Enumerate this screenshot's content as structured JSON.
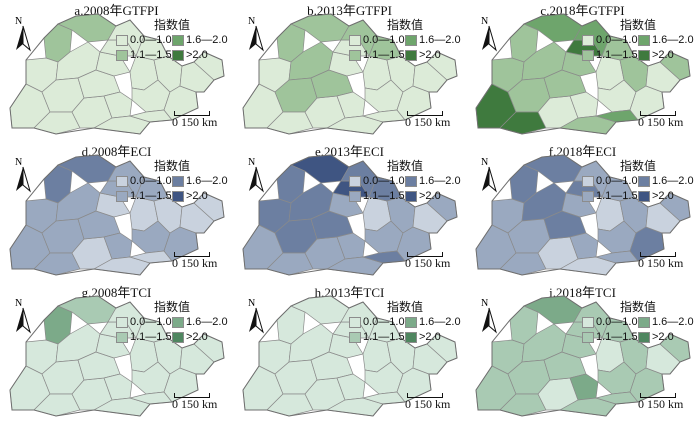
{
  "legend_title": "指数值",
  "legend_labels": [
    "0.0—1.0",
    "1.6—2.0",
    "1.1—1.5",
    ">2.0"
  ],
  "north_label": "N",
  "scale_zero": "0",
  "scale_value": "150 km",
  "palettes": {
    "GTFPI": [
      "#dcebd8",
      "#9fc49b",
      "#6ea56c",
      "#3f7a3e"
    ],
    "ECI": [
      "#c9d2de",
      "#9aa9c0",
      "#6c7fa1",
      "#3f5582"
    ],
    "TCI": [
      "#d6e8dc",
      "#a9cab3",
      "#7caa89",
      "#4f8660"
    ]
  },
  "panels": [
    {
      "title": "a.2008年GTFPI",
      "index": "GTFPI",
      "levels": [
        1,
        1,
        0,
        0,
        0,
        0,
        0,
        0,
        0,
        0,
        0,
        0,
        0,
        0,
        0,
        0,
        0,
        0,
        0,
        0,
        0,
        0
      ]
    },
    {
      "title": "b.2013年GTFPI",
      "index": "GTFPI",
      "levels": [
        1,
        1,
        0,
        1,
        0,
        1,
        0,
        0,
        1,
        0,
        0,
        1,
        0,
        0,
        0,
        0,
        0,
        1,
        0,
        0,
        0,
        0
      ]
    },
    {
      "title": "c.2018年GTFPI",
      "index": "GTFPI",
      "levels": [
        1,
        2,
        1,
        1,
        3,
        1,
        3,
        0,
        1,
        1,
        3,
        2,
        0,
        1,
        0,
        0,
        2,
        1,
        1,
        0,
        0,
        1
      ]
    },
    {
      "title": "d.2008年ECI",
      "index": "ECI",
      "levels": [
        2,
        2,
        1,
        1,
        1,
        1,
        1,
        0,
        1,
        0,
        1,
        1,
        1,
        0,
        0,
        1,
        0,
        1,
        0,
        1,
        0,
        0
      ]
    },
    {
      "title": "e.2013年ECI",
      "index": "ECI",
      "levels": [
        2,
        3,
        2,
        2,
        1,
        2,
        1,
        1,
        2,
        1,
        3,
        2,
        1,
        1,
        0,
        1,
        2,
        2,
        1,
        1,
        0,
        1
      ]
    },
    {
      "title": "f.2018年ECI",
      "index": "ECI",
      "levels": [
        2,
        2,
        1,
        2,
        1,
        1,
        1,
        0,
        2,
        1,
        2,
        1,
        1,
        0,
        0,
        1,
        1,
        1,
        1,
        2,
        0,
        1
      ]
    },
    {
      "title": "g.2008年TCI",
      "index": "TCI",
      "levels": [
        2,
        1,
        0,
        0,
        0,
        0,
        0,
        0,
        0,
        0,
        0,
        0,
        0,
        0,
        0,
        0,
        0,
        0,
        0,
        0,
        0,
        0
      ]
    },
    {
      "title": "h.2013年TCI",
      "index": "TCI",
      "levels": [
        0,
        0,
        0,
        0,
        0,
        0,
        0,
        0,
        0,
        0,
        0,
        0,
        0,
        0,
        0,
        0,
        0,
        0,
        0,
        0,
        0,
        0
      ]
    },
    {
      "title": "i.2018年TCI",
      "index": "TCI",
      "levels": [
        1,
        2,
        1,
        1,
        1,
        1,
        1,
        0,
        1,
        1,
        1,
        1,
        2,
        1,
        0,
        1,
        1,
        1,
        1,
        1,
        0,
        1
      ]
    }
  ]
}
